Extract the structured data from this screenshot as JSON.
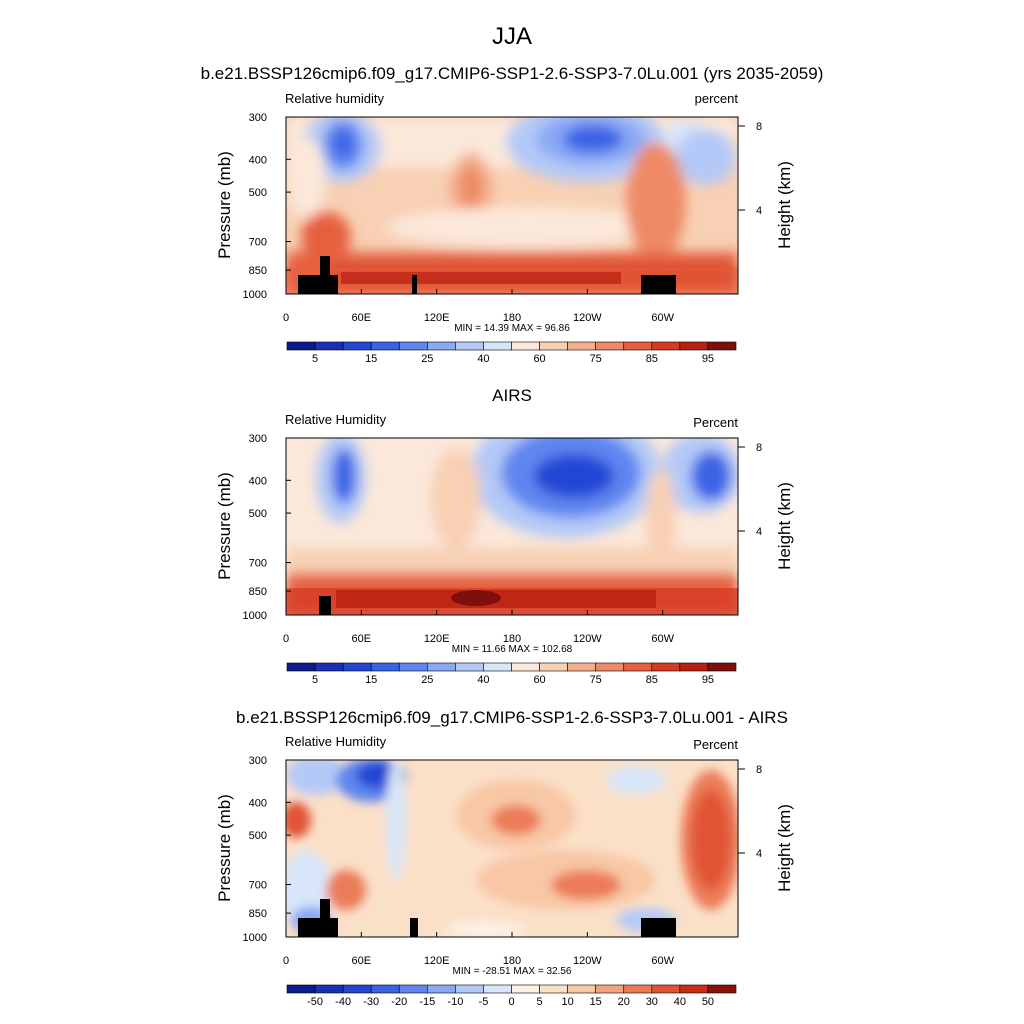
{
  "figure": {
    "season": "JJA",
    "colors": {
      "rh_scale": [
        "#0c1a8c",
        "#1a2fb8",
        "#2347d4",
        "#3a63e6",
        "#5f86f0",
        "#8aa8f4",
        "#b4c9f7",
        "#d8e6fa",
        "#fbe8da",
        "#f8d0b4",
        "#f4b08d",
        "#ee8a66",
        "#e6603f",
        "#d63a23",
        "#b8200f",
        "#7e0f0c"
      ],
      "diff_scale": [
        "#0c1a8c",
        "#1a2fb8",
        "#2347d4",
        "#3a63e6",
        "#5f86f0",
        "#8aa8f4",
        "#b4c9f7",
        "#d8e6fa",
        "#fdf1e6",
        "#fbe0c8",
        "#f8c7a5",
        "#f3a47f",
        "#ec7c58",
        "#e05434",
        "#c82e17",
        "#8a100a"
      ],
      "terrain": "#000000"
    }
  },
  "chart_data": [
    {
      "type": "heatmap",
      "title": "b.e21.BSSP126cmip6.f09_g17.CMIP6-SSP1-2.6-SSP3-7.0Lu.001 (yrs 2035-2059)",
      "left_label": "Relative humidity",
      "right_label": "percent",
      "ylabel": "Pressure (mb)",
      "y2label": "Height (km)",
      "x_ticks": [
        "0",
        "60E",
        "120E",
        "180",
        "120W",
        "60W"
      ],
      "x_tick_lon": [
        0,
        60,
        120,
        180,
        240,
        300
      ],
      "xlim": [
        0,
        360
      ],
      "y_ticks": [
        "300",
        "400",
        "500",
        "700",
        "850",
        "1000"
      ],
      "y_tick_p": [
        300,
        400,
        500,
        700,
        850,
        1000
      ],
      "ylim": [
        300,
        1000
      ],
      "height_ticks": [
        "8",
        "4"
      ],
      "height_tick_km": [
        8,
        4
      ],
      "stats": "MIN =  14.39  MAX =  96.86",
      "colorbar_labels": [
        "5",
        "15",
        "25",
        "40",
        "60",
        "75",
        "85",
        "95"
      ],
      "colorbar_label_pos": [
        1,
        3,
        5,
        7,
        9,
        11,
        13,
        15
      ],
      "field_min": 14.39,
      "field_max": 96.86
    },
    {
      "type": "heatmap",
      "title": "AIRS",
      "left_label": "Relative Humidity",
      "right_label": "Percent",
      "ylabel": "Pressure (mb)",
      "y2label": "Height (km)",
      "x_ticks": [
        "0",
        "60E",
        "120E",
        "180",
        "120W",
        "60W"
      ],
      "x_tick_lon": [
        0,
        60,
        120,
        180,
        240,
        300
      ],
      "xlim": [
        0,
        360
      ],
      "y_ticks": [
        "300",
        "400",
        "500",
        "700",
        "850",
        "1000"
      ],
      "y_tick_p": [
        300,
        400,
        500,
        700,
        850,
        1000
      ],
      "ylim": [
        300,
        1000
      ],
      "height_ticks": [
        "8",
        "4"
      ],
      "height_tick_km": [
        8,
        4
      ],
      "stats": "MIN =  11.66  MAX = 102.68",
      "colorbar_labels": [
        "5",
        "15",
        "25",
        "40",
        "60",
        "75",
        "85",
        "95"
      ],
      "colorbar_label_pos": [
        1,
        3,
        5,
        7,
        9,
        11,
        13,
        15
      ],
      "field_min": 11.66,
      "field_max": 102.68
    },
    {
      "type": "heatmap",
      "title": "b.e21.BSSP126cmip6.f09_g17.CMIP6-SSP1-2.6-SSP3-7.0Lu.001 - AIRS",
      "left_label": "Relative Humidity",
      "right_label": "Percent",
      "ylabel": "Pressure (mb)",
      "y2label": "Height (km)",
      "x_ticks": [
        "0",
        "60E",
        "120E",
        "180",
        "120W",
        "60W"
      ],
      "x_tick_lon": [
        0,
        60,
        120,
        180,
        240,
        300
      ],
      "xlim": [
        0,
        360
      ],
      "y_ticks": [
        "300",
        "400",
        "500",
        "700",
        "850",
        "1000"
      ],
      "y_tick_p": [
        300,
        400,
        500,
        700,
        850,
        1000
      ],
      "ylim": [
        300,
        1000
      ],
      "height_ticks": [
        "8",
        "4"
      ],
      "height_tick_km": [
        8,
        4
      ],
      "stats": "MIN = -28.51  MAX =  32.56",
      "colorbar_labels": [
        "-50",
        "-40",
        "-30",
        "-20",
        "-15",
        "-10",
        "-5",
        "0",
        "5",
        "10",
        "15",
        "20",
        "30",
        "40",
        "50"
      ],
      "colorbar_label_pos": [
        1,
        2,
        3,
        4,
        5,
        6,
        7,
        8,
        9,
        10,
        11,
        12,
        13,
        14,
        15
      ],
      "field_min": -28.51,
      "field_max": 32.56
    }
  ]
}
